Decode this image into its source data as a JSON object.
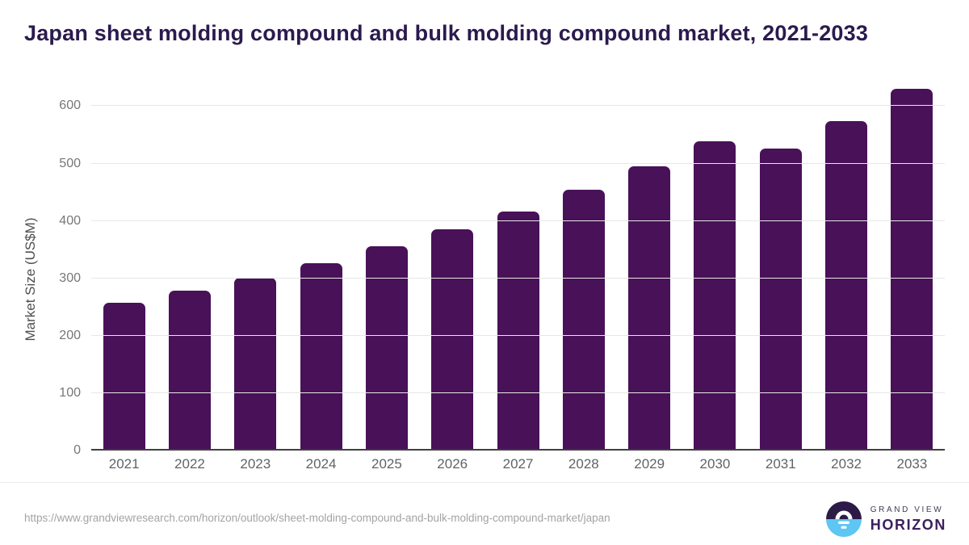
{
  "header": {
    "title": "Japan sheet molding compound and bulk molding compound market, 2021-2033"
  },
  "chart_data": {
    "type": "bar",
    "title": "Japan sheet molding compound and bulk molding compound market, 2021-2033",
    "categories": [
      "2021",
      "2022",
      "2023",
      "2024",
      "2025",
      "2026",
      "2027",
      "2028",
      "2029",
      "2030",
      "2031",
      "2032",
      "2033"
    ],
    "values": [
      256,
      277,
      300,
      325,
      355,
      384,
      416,
      453,
      494,
      538,
      525,
      574,
      630
    ],
    "xlabel": "",
    "ylabel": "Market Size (US$M)",
    "ylim": [
      0,
      640
    ],
    "yticks": [
      0,
      100,
      200,
      300,
      400,
      500,
      600
    ],
    "grid": true,
    "legend_position": "none",
    "bar_color": "#481158",
    "gridline_color": "#e7e7e7",
    "axis_line_color": "#3f3f3f"
  },
  "footer": {
    "source_url": "https://www.grandviewresearch.com/horizon/outlook/sheet-molding-compound-and-bulk-molding-compound-market/japan",
    "brand": {
      "line1": "GRAND VIEW",
      "line2": "HORIZON",
      "icon_colors": {
        "top_half": "#2d1a47",
        "bottom_half": "#5ec6f2",
        "sun": "#ffffff"
      }
    }
  },
  "colors": {
    "title_text": "#2b1a4e",
    "bar": "#481158",
    "y_tick_text": "#777777",
    "x_tick_text": "#5f6368",
    "url_text": "#a3a3a3"
  }
}
